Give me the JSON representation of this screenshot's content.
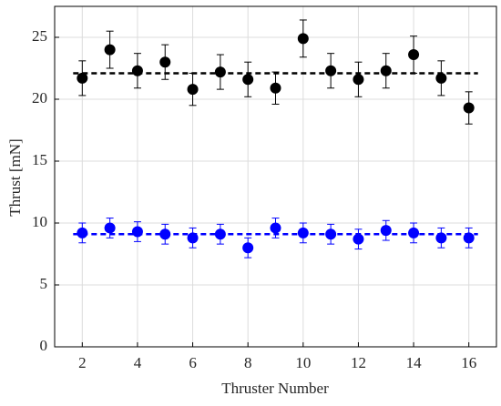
{
  "chart_data": {
    "type": "scatter",
    "x_label": "Thruster Number",
    "y_label": "Thrust [mN]",
    "x": [
      2,
      3,
      4,
      5,
      6,
      7,
      8,
      9,
      10,
      11,
      12,
      13,
      14,
      15,
      16
    ],
    "series": [
      {
        "color": "#000000",
        "values": [
          21.7,
          24.0,
          22.3,
          23.0,
          20.8,
          22.2,
          21.6,
          20.9,
          24.9,
          22.3,
          21.6,
          22.3,
          23.6,
          21.7,
          19.3
        ],
        "errors": [
          1.4,
          1.5,
          1.4,
          1.4,
          1.3,
          1.4,
          1.4,
          1.3,
          1.5,
          1.4,
          1.4,
          1.4,
          1.5,
          1.4,
          1.3
        ]
      },
      {
        "color": "#0000ff",
        "values": [
          9.2,
          9.6,
          9.3,
          9.1,
          8.8,
          9.1,
          8.0,
          9.6,
          9.2,
          9.1,
          8.7,
          9.4,
          9.2,
          8.8,
          8.8
        ],
        "errors": [
          0.8,
          0.8,
          0.8,
          0.8,
          0.8,
          0.8,
          0.8,
          0.8,
          0.8,
          0.8,
          0.8,
          0.8,
          0.8,
          0.8,
          0.8
        ]
      }
    ],
    "reference_lines": [
      {
        "value": 22.1,
        "color": "#000000"
      },
      {
        "value": 9.1,
        "color": "#0000ff"
      }
    ],
    "xlim": [
      1,
      17
    ],
    "xticks": [
      2,
      4,
      6,
      8,
      10,
      12,
      14,
      16
    ],
    "ylim": [
      0,
      27.5
    ],
    "yticks": [
      0,
      5,
      10,
      15,
      20,
      25
    ],
    "grid": true
  }
}
